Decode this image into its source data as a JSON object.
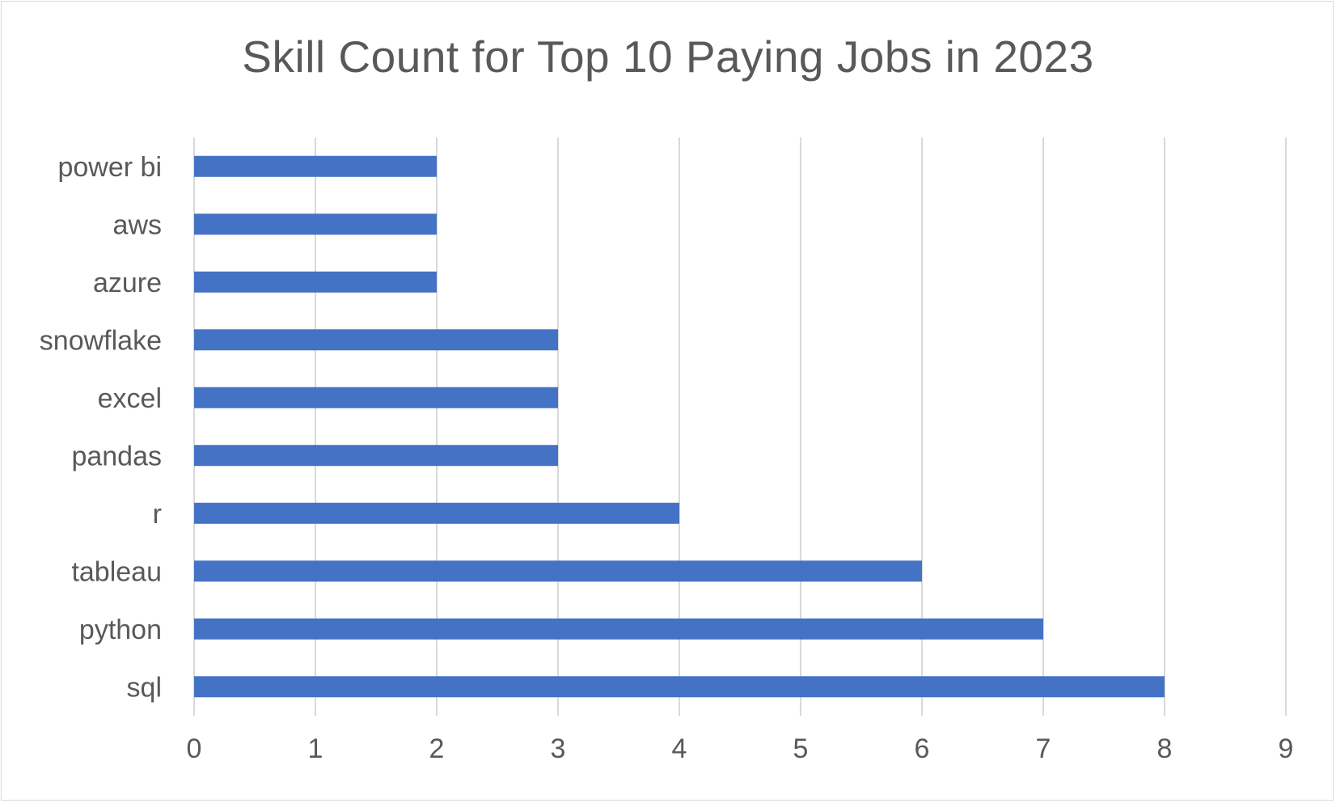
{
  "chart_data": {
    "type": "bar",
    "orientation": "horizontal",
    "title": "Skill Count for Top 10 Paying Jobs in 2023",
    "categories": [
      "sql",
      "python",
      "tableau",
      "r",
      "pandas",
      "excel",
      "snowflake",
      "azure",
      "aws",
      "power bi"
    ],
    "values": [
      8,
      7,
      6,
      4,
      3,
      3,
      3,
      2,
      2,
      2
    ],
    "xlim": [
      0,
      9
    ],
    "x_ticks": [
      "0",
      "1",
      "2",
      "3",
      "4",
      "5",
      "6",
      "7",
      "8",
      "9"
    ],
    "grid": "vertical",
    "legend": "none",
    "bar_color": "#4472c4",
    "grid_color": "#d9d9d9",
    "text_color": "#595959"
  }
}
